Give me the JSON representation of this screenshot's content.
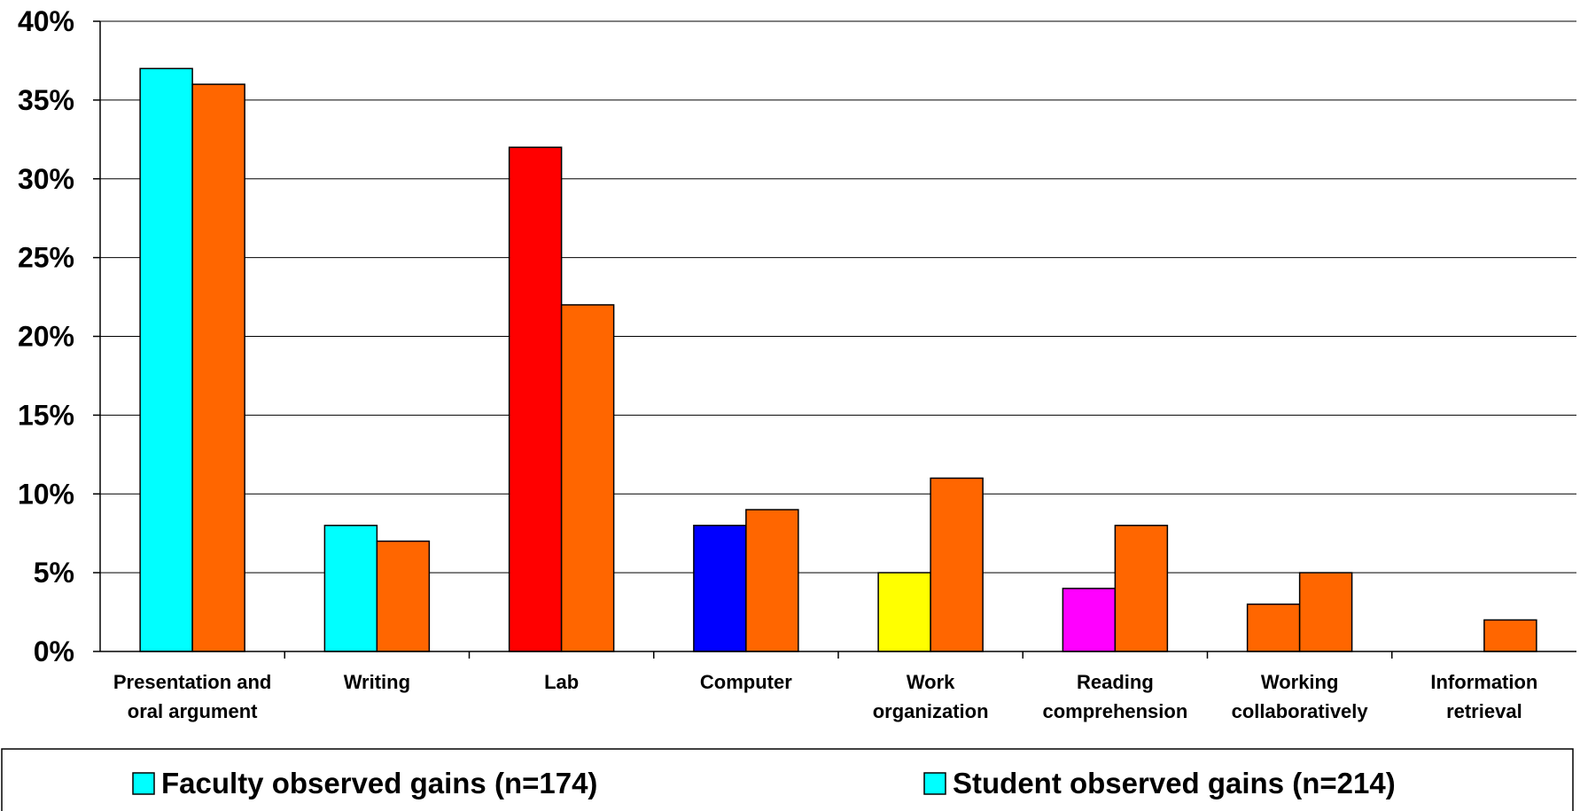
{
  "chart_data": {
    "type": "bar",
    "title": "",
    "xlabel": "",
    "ylabel": "",
    "ylim": [
      0,
      40
    ],
    "y_ticks": [
      "0%",
      "5%",
      "10%",
      "15%",
      "20%",
      "25%",
      "30%",
      "35%",
      "40%"
    ],
    "y_tick_values": [
      0,
      5,
      10,
      15,
      20,
      25,
      30,
      35,
      40
    ],
    "grid": true,
    "legend_position": "bottom",
    "categories": [
      [
        "Presentation and",
        "oral argument"
      ],
      [
        "Writing"
      ],
      [
        "Lab"
      ],
      [
        "Computer"
      ],
      [
        "Work",
        "organization"
      ],
      [
        "Reading",
        "comprehension"
      ],
      [
        "Working",
        "collaboratively"
      ],
      [
        "Information",
        "retrieval"
      ]
    ],
    "series": [
      {
        "name": "Faculty observed gains (n=174)",
        "values": [
          37,
          8,
          32,
          8,
          5,
          4,
          3,
          0
        ],
        "colors": [
          "#00FFFF",
          "#00FFFF",
          "#FF0000",
          "#0000FF",
          "#FFFF00",
          "#FF00FF",
          "#FF6600",
          "#FF6600"
        ]
      },
      {
        "name": "Student observed gains (n=214)",
        "values": [
          36,
          7,
          22,
          9,
          11,
          8,
          5,
          2
        ],
        "colors": [
          "#FF6600",
          "#FF6600",
          "#FF6600",
          "#FF6600",
          "#FF6600",
          "#FF6600",
          "#FF6600",
          "#FF6600"
        ]
      }
    ],
    "legend": [
      {
        "label": "Faculty observed gains (n=174)",
        "color": "#00FFFF"
      },
      {
        "label": "Student observed gains (n=214)",
        "color": "#00FFFF"
      }
    ]
  }
}
